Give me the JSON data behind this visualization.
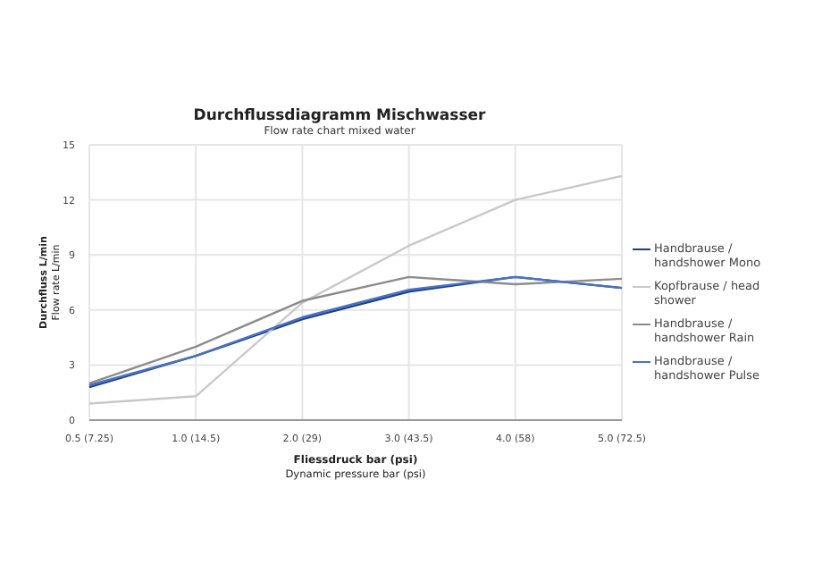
{
  "chart_data": {
    "type": "line",
    "title": "Durchflussdiagramm Mischwasser",
    "subtitle": "Flow rate chart mixed water",
    "xlabel": "Fliessdruck bar (psi)\nDynamic pressure bar (psi)",
    "ylabel": "Durchfluss L/min\nFlow rate L/min",
    "categories": [
      "0.5 (7.25)",
      "1.0 (14.5)",
      "2.0 (29)",
      "3.0 (43.5)",
      "4.0 (58)",
      "5.0 (72.5)"
    ],
    "series": [
      {
        "name": "Handbrause / handshower Mono",
        "color": "#1f3f8a",
        "values": [
          1.8,
          3.5,
          5.5,
          7.0,
          7.8,
          7.2
        ]
      },
      {
        "name": "Kopfbrause / head shower",
        "color": "#c8c8c8",
        "values": [
          0.9,
          1.3,
          6.4,
          9.5,
          12.0,
          13.3
        ]
      },
      {
        "name": "Handbrause / handshower Rain",
        "color": "#8c8c8c",
        "values": [
          2.0,
          4.0,
          6.5,
          7.8,
          7.4,
          7.7
        ]
      },
      {
        "name": "Handbrause / handshower Pulse",
        "color": "#4a72c4",
        "values": [
          1.9,
          3.5,
          5.6,
          7.1,
          7.8,
          7.2
        ]
      }
    ],
    "ylim": [
      0,
      15
    ],
    "yticks": [
      0,
      3,
      6,
      9,
      12,
      15
    ],
    "grid": true,
    "legend": "right",
    "marker": "none",
    "line_style": "solid"
  }
}
